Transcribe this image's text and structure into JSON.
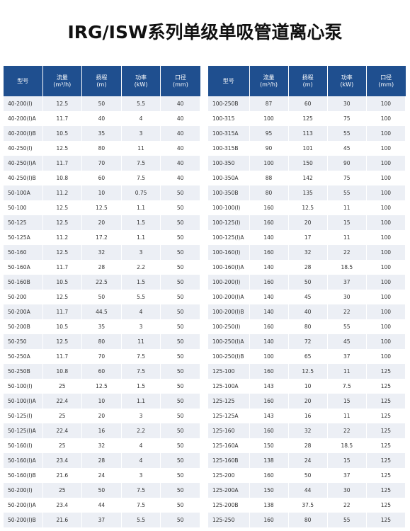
{
  "title": "IRG/ISW系列单级单吸管道离心泵",
  "headers": [
    {
      "label": "型号"
    },
    {
      "label": "流量",
      "unit": "(m³/h)"
    },
    {
      "label": "扬程",
      "unit": "(m)"
    },
    {
      "label": "功率",
      "unit": "(kW)"
    },
    {
      "label": "口径",
      "unit": "(mm)"
    }
  ],
  "tables": [
    {
      "rows": [
        [
          "40-200(I)",
          "12.5",
          "50",
          "5.5",
          "40"
        ],
        [
          "40-200(I)A",
          "11.7",
          "40",
          "4",
          "40"
        ],
        [
          "40-200(I)B",
          "10.5",
          "35",
          "3",
          "40"
        ],
        [
          "40-250(I)",
          "12.5",
          "80",
          "11",
          "40"
        ],
        [
          "40-250(I)A",
          "11.7",
          "70",
          "7.5",
          "40"
        ],
        [
          "40-250(I)B",
          "10.8",
          "60",
          "7.5",
          "40"
        ],
        [
          "50-100A",
          "11.2",
          "10",
          "0.75",
          "50"
        ],
        [
          "50-100",
          "12.5",
          "12.5",
          "1.1",
          "50"
        ],
        [
          "50-125",
          "12.5",
          "20",
          "1.5",
          "50"
        ],
        [
          "50-125A",
          "11.2",
          "17.2",
          "1.1",
          "50"
        ],
        [
          "50-160",
          "12.5",
          "32",
          "3",
          "50"
        ],
        [
          "50-160A",
          "11.7",
          "28",
          "2.2",
          "50"
        ],
        [
          "50-160B",
          "10.5",
          "22.5",
          "1.5",
          "50"
        ],
        [
          "50-200",
          "12.5",
          "50",
          "5.5",
          "50"
        ],
        [
          "50-200A",
          "11.7",
          "44.5",
          "4",
          "50"
        ],
        [
          "50-200B",
          "10.5",
          "35",
          "3",
          "50"
        ],
        [
          "50-250",
          "12.5",
          "80",
          "11",
          "50"
        ],
        [
          "50-250A",
          "11.7",
          "70",
          "7.5",
          "50"
        ],
        [
          "50-250B",
          "10.8",
          "60",
          "7.5",
          "50"
        ],
        [
          "50-100(I)",
          "25",
          "12.5",
          "1.5",
          "50"
        ],
        [
          "50-100(I)A",
          "22.4",
          "10",
          "1.1",
          "50"
        ],
        [
          "50-125(I)",
          "25",
          "20",
          "3",
          "50"
        ],
        [
          "50-125(I)A",
          "22.4",
          "16",
          "2.2",
          "50"
        ],
        [
          "50-160(I)",
          "25",
          "32",
          "4",
          "50"
        ],
        [
          "50-160(I)A",
          "23.4",
          "28",
          "4",
          "50"
        ],
        [
          "50-160(I)B",
          "21.6",
          "24",
          "3",
          "50"
        ],
        [
          "50-200(I)",
          "25",
          "50",
          "7.5",
          "50"
        ],
        [
          "50-200(I)A",
          "23.4",
          "44",
          "7.5",
          "50"
        ],
        [
          "50-200(I)B",
          "21.6",
          "37",
          "5.5",
          "50"
        ]
      ]
    },
    {
      "rows": [
        [
          "100-250B",
          "87",
          "60",
          "30",
          "100"
        ],
        [
          "100-315",
          "100",
          "125",
          "75",
          "100"
        ],
        [
          "100-315A",
          "95",
          "113",
          "55",
          "100"
        ],
        [
          "100-315B",
          "90",
          "101",
          "45",
          "100"
        ],
        [
          "100-350",
          "100",
          "150",
          "90",
          "100"
        ],
        [
          "100-350A",
          "88",
          "142",
          "75",
          "100"
        ],
        [
          "100-350B",
          "80",
          "135",
          "55",
          "100"
        ],
        [
          "100-100(I)",
          "160",
          "12.5",
          "11",
          "100"
        ],
        [
          "100-125(I)",
          "160",
          "20",
          "15",
          "100"
        ],
        [
          "100-125(I)A",
          "140",
          "17",
          "11",
          "100"
        ],
        [
          "100-160(I)",
          "160",
          "32",
          "22",
          "100"
        ],
        [
          "100-160(I)A",
          "140",
          "28",
          "18.5",
          "100"
        ],
        [
          "100-200(I)",
          "160",
          "50",
          "37",
          "100"
        ],
        [
          "100-200(I)A",
          "140",
          "45",
          "30",
          "100"
        ],
        [
          "100-200(I)B",
          "140",
          "40",
          "22",
          "100"
        ],
        [
          "100-250(I)",
          "160",
          "80",
          "55",
          "100"
        ],
        [
          "100-250(I)A",
          "140",
          "72",
          "45",
          "100"
        ],
        [
          "100-250(I)B",
          "100",
          "65",
          "37",
          "100"
        ],
        [
          "125-100",
          "160",
          "12.5",
          "11",
          "125"
        ],
        [
          "125-100A",
          "143",
          "10",
          "7.5",
          "125"
        ],
        [
          "125-125",
          "160",
          "20",
          "15",
          "125"
        ],
        [
          "125-125A",
          "143",
          "16",
          "11",
          "125"
        ],
        [
          "125-160",
          "160",
          "32",
          "22",
          "125"
        ],
        [
          "125-160A",
          "150",
          "28",
          "18.5",
          "125"
        ],
        [
          "125-160B",
          "138",
          "24",
          "15",
          "125"
        ],
        [
          "125-200",
          "160",
          "50",
          "37",
          "125"
        ],
        [
          "125-200A",
          "150",
          "44",
          "30",
          "125"
        ],
        [
          "125-200B",
          "138",
          "37.5",
          "22",
          "125"
        ],
        [
          "125-250",
          "160",
          "80",
          "55",
          "125"
        ]
      ]
    }
  ]
}
